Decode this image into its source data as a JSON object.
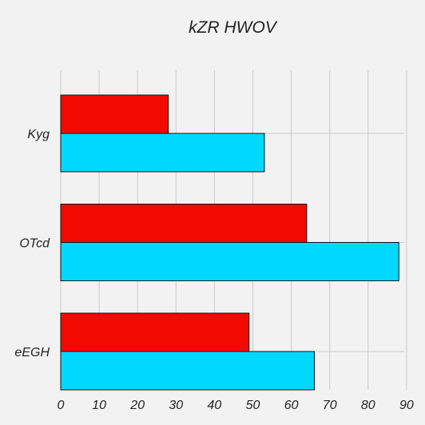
{
  "chart_data": {
    "type": "bar",
    "orientation": "horizontal",
    "title": "kZR HWOV",
    "xlabel": "",
    "ylabel": "",
    "categories": [
      "Kyg",
      "OTcd",
      "eEGH"
    ],
    "series": [
      {
        "color": "#f20a00",
        "values": [
          28,
          64,
          49
        ]
      },
      {
        "color": "#00d8ff",
        "values": [
          53,
          88,
          66
        ]
      }
    ],
    "xlim": [
      0,
      90
    ],
    "xticks": [
      0,
      10,
      20,
      30,
      40,
      50,
      60,
      70,
      80,
      90
    ],
    "grid": true,
    "legend": "none"
  }
}
